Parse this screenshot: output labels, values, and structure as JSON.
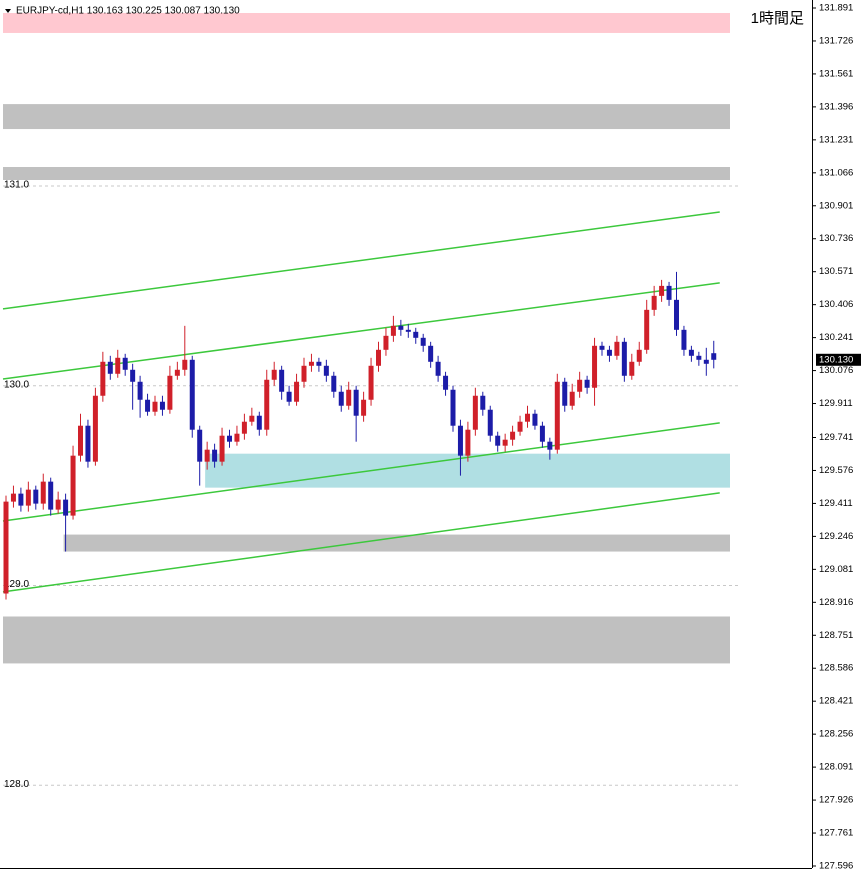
{
  "chart_data": {
    "type": "candlestick",
    "title": "EURJPY-cd,H1  130.163 130.225 130.087 130.130",
    "annotation": "1時間足",
    "last_price_label": "130.130",
    "up_color": "#d0202a",
    "down_color": "#1c1ca8",
    "line_color": "#3cc83c",
    "ylim": [
      127.596,
      131.891
    ],
    "yticks": [
      131.891,
      131.726,
      131.561,
      131.396,
      131.231,
      131.066,
      130.901,
      130.736,
      130.571,
      130.406,
      130.241,
      130.076,
      129.911,
      129.741,
      129.576,
      129.411,
      129.246,
      129.081,
      128.916,
      128.751,
      128.586,
      128.421,
      128.256,
      128.091,
      127.926,
      127.761,
      127.596
    ],
    "grid_ticks": [
      {
        "value": 131,
        "label": "131.0"
      },
      {
        "value": 130,
        "label": "130.0"
      },
      {
        "value": 129,
        "label": "129.0"
      },
      {
        "value": 128,
        "label": "128.0"
      }
    ],
    "zones": [
      {
        "low": 131.766,
        "high": 131.866,
        "start": 0,
        "color": "#ffc8d0"
      },
      {
        "low": 131.285,
        "high": 131.41,
        "start": 0,
        "color": "#c0c0c0"
      },
      {
        "low": 131.03,
        "high": 131.095,
        "start": 0,
        "color": "#c0c0c0"
      },
      {
        "low": 129.49,
        "high": 129.66,
        "start": 27,
        "color": "#b0dfe3"
      },
      {
        "low": 129.17,
        "high": 129.255,
        "start": 8,
        "color": "#c0c0c0"
      },
      {
        "low": 128.61,
        "high": 128.845,
        "start": 0,
        "color": "#c0c0c0"
      }
    ],
    "trend_lines": [
      {
        "start_index": 0,
        "start": 130.385,
        "end_index": 95,
        "end": 130.87
      },
      {
        "start_index": 0,
        "start": 130.034,
        "end_index": 95,
        "end": 130.515
      },
      {
        "start_index": 0,
        "start": 129.323,
        "end_index": 95,
        "end": 129.814
      },
      {
        "start_index": 0,
        "start": 128.968,
        "end_index": 95,
        "end": 129.464
      }
    ],
    "open": [
      128.96,
      129.42,
      129.46,
      129.4,
      129.48,
      129.41,
      129.52,
      129.38,
      129.43,
      129.35,
      129.65,
      129.8,
      129.62,
      129.95,
      130.12,
      130.06,
      130.14,
      130.08,
      130.02,
      129.93,
      129.87,
      129.92,
      129.88,
      130.05,
      130.08,
      130.13,
      129.78,
      129.62,
      129.68,
      129.62,
      129.75,
      129.72,
      129.76,
      129.82,
      129.85,
      129.78,
      130.03,
      130.08,
      129.97,
      129.92,
      130.02,
      130.1,
      130.12,
      130.1,
      130.05,
      129.97,
      129.9,
      129.98,
      129.85,
      129.93,
      130.1,
      130.18,
      130.25,
      130.3,
      130.28,
      130.27,
      130.24,
      130.2,
      130.12,
      130.05,
      129.98,
      129.8,
      129.65,
      129.78,
      129.95,
      129.88,
      129.75,
      129.7,
      129.73,
      129.77,
      129.82,
      129.86,
      129.8,
      129.72,
      129.68,
      130.02,
      129.9,
      129.97,
      130.03,
      129.99,
      130.2,
      130.18,
      130.15,
      130.22,
      130.05,
      130.12,
      130.18,
      130.38,
      130.45,
      130.5,
      130.43,
      130.28,
      130.18,
      130.15,
      130.13,
      130.163
    ],
    "high": [
      129.45,
      129.5,
      129.49,
      129.52,
      129.5,
      129.56,
      129.54,
      129.47,
      129.46,
      129.7,
      129.86,
      129.83,
      129.99,
      130.17,
      130.15,
      130.18,
      130.16,
      130.11,
      130.05,
      129.96,
      129.95,
      129.95,
      130.1,
      130.12,
      130.3,
      130.15,
      129.8,
      129.72,
      129.71,
      129.79,
      129.78,
      129.8,
      129.86,
      129.89,
      129.87,
      130.08,
      130.12,
      130.1,
      130.0,
      130.06,
      130.14,
      130.16,
      130.14,
      130.13,
      130.07,
      130.0,
      130.02,
      130.0,
      129.97,
      130.14,
      130.22,
      130.29,
      130.35,
      130.33,
      130.31,
      130.29,
      130.26,
      130.22,
      130.15,
      130.07,
      130.0,
      129.83,
      129.82,
      129.99,
      129.97,
      129.9,
      129.77,
      129.76,
      129.8,
      129.85,
      129.9,
      129.88,
      129.82,
      129.74,
      130.06,
      130.04,
      130.01,
      130.07,
      130.05,
      130.24,
      130.22,
      130.2,
      130.25,
      130.24,
      130.16,
      130.22,
      130.43,
      130.5,
      130.53,
      130.52,
      130.57,
      130.3,
      130.2,
      130.17,
      130.19,
      130.225
    ],
    "low": [
      128.93,
      129.39,
      129.37,
      129.37,
      129.38,
      129.38,
      129.35,
      129.36,
      129.17,
      129.33,
      129.62,
      129.59,
      129.6,
      129.92,
      130.03,
      130.04,
      130.05,
      129.88,
      129.84,
      129.85,
      129.85,
      129.85,
      129.86,
      130.03,
      130.05,
      129.74,
      129.5,
      129.58,
      129.59,
      129.6,
      129.69,
      129.7,
      129.73,
      129.8,
      129.75,
      129.75,
      130.0,
      129.93,
      129.9,
      129.9,
      129.99,
      130.07,
      130.07,
      130.02,
      129.94,
      129.87,
      129.88,
      129.72,
      129.82,
      129.9,
      130.07,
      130.15,
      130.22,
      130.25,
      130.24,
      130.21,
      130.17,
      130.09,
      130.02,
      129.95,
      129.77,
      129.55,
      129.62,
      129.75,
      129.85,
      129.72,
      129.67,
      129.67,
      129.7,
      129.75,
      129.79,
      129.78,
      129.69,
      129.63,
      129.66,
      129.87,
      129.88,
      129.94,
      129.96,
      129.9,
      130.15,
      130.12,
      130.13,
      130.02,
      130.03,
      130.1,
      130.16,
      130.35,
      130.42,
      130.4,
      130.25,
      130.15,
      130.12,
      130.1,
      130.05,
      130.087
    ],
    "close": [
      129.42,
      129.46,
      129.4,
      129.48,
      129.41,
      129.52,
      129.38,
      129.43,
      129.35,
      129.65,
      129.8,
      129.62,
      129.95,
      130.12,
      130.06,
      130.14,
      130.08,
      130.02,
      129.93,
      129.87,
      129.92,
      129.88,
      130.05,
      130.08,
      130.13,
      129.78,
      129.62,
      129.68,
      129.62,
      129.75,
      129.72,
      129.76,
      129.82,
      129.85,
      129.78,
      130.03,
      130.08,
      129.97,
      129.92,
      130.02,
      130.1,
      130.12,
      130.1,
      130.05,
      129.97,
      129.9,
      129.98,
      129.85,
      129.93,
      130.1,
      130.18,
      130.25,
      130.3,
      130.28,
      130.27,
      130.24,
      130.2,
      130.12,
      130.05,
      129.98,
      129.8,
      129.65,
      129.78,
      129.95,
      129.88,
      129.75,
      129.7,
      129.73,
      129.77,
      129.82,
      129.86,
      129.8,
      129.72,
      129.68,
      130.02,
      129.9,
      129.97,
      130.03,
      129.99,
      130.2,
      130.18,
      130.15,
      130.22,
      130.05,
      130.12,
      130.18,
      130.38,
      130.45,
      130.5,
      130.43,
      130.28,
      130.18,
      130.15,
      130.13,
      130.11,
      130.13
    ]
  }
}
